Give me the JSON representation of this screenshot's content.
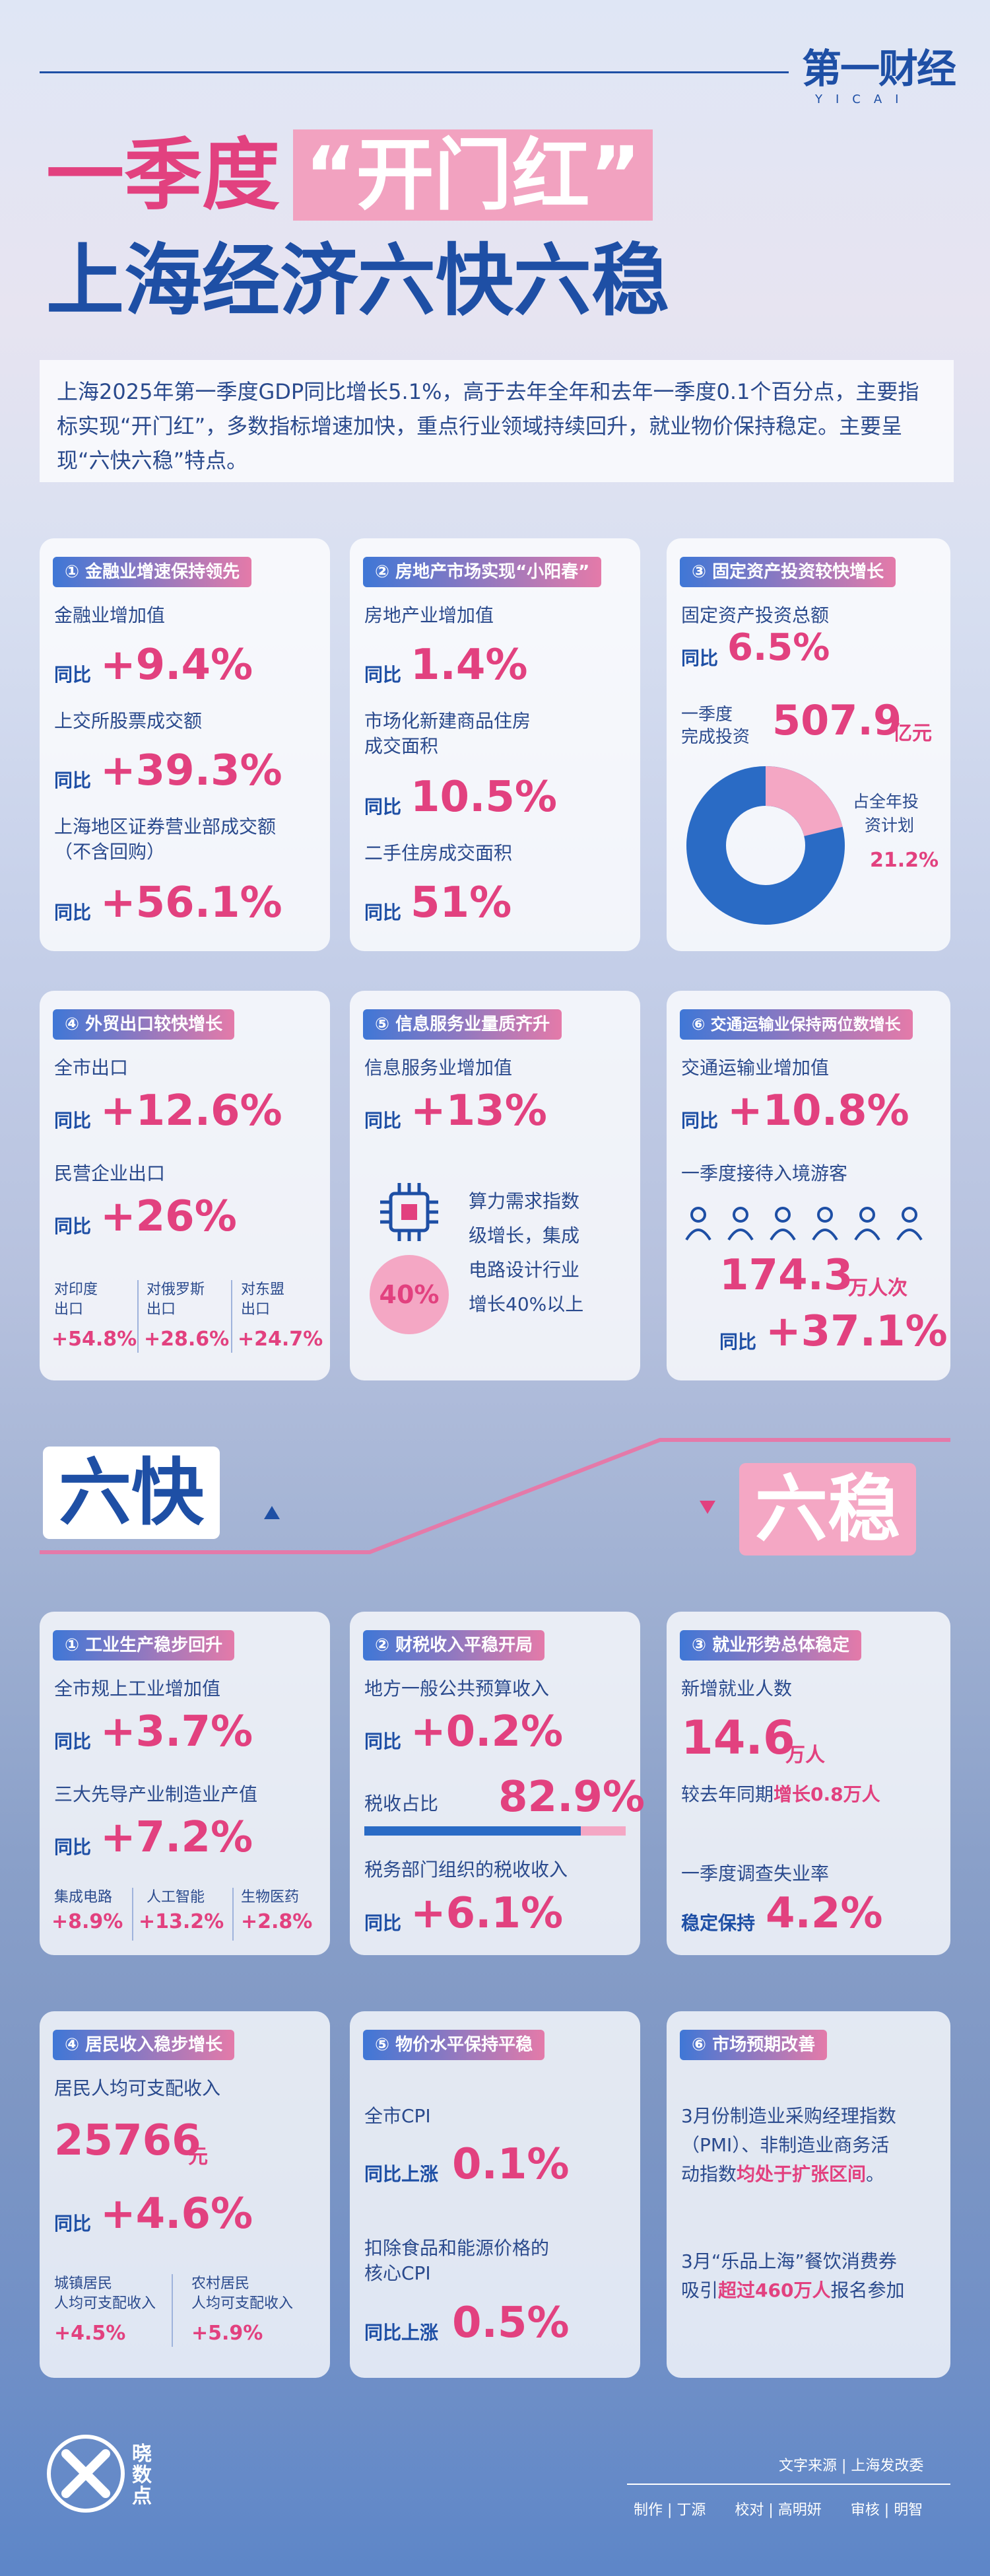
{
  "brand": {
    "logo": "第一财经",
    "logo_sub": "YICAI",
    "footer_logo": "晓数点"
  },
  "title": {
    "line1_a": "一季度",
    "line1_b": "“开门红”",
    "line2": "上海经济六快六稳"
  },
  "intro": "上海2025年第一季度GDP同比增长5.1%，高于去年全年和去年一季度0.1个百分点，主要指标实现“开门红”，多数指标增速加快，重点行业领域持续回升，就业物价保持稳定。主要呈现“六快六稳”特点。",
  "common": {
    "yoy": "同比",
    "yoy_up": "同比上涨"
  },
  "c1": {
    "tag": "① 金融业增速保持领先",
    "l1": "金融业增加值",
    "v1": "+9.4%",
    "l2": "上交所股票成交额",
    "v2": "+39.3%",
    "l3a": "上海地区证券营业部成交额",
    "l3b": "（不含回购）",
    "v3": "+56.1%"
  },
  "c2": {
    "tag": "② 房地产市场实现“小阳春”",
    "l1": "房地产业增加值",
    "v1": "1.4%",
    "l2a": "市场化新建商品住房",
    "l2b": "成交面积",
    "v2": "10.5%",
    "l3": "二手住房成交面积",
    "v3": "51%"
  },
  "c3": {
    "tag": "③ 固定资产投资较快增长",
    "l1": "固定资产投资总额",
    "v1": "6.5%",
    "l2a": "一季度",
    "l2b": "完成投资",
    "v2": "507.9",
    "v2u": "亿元",
    "donut_a": "占全年投",
    "donut_b": "资计划",
    "donut_v": "21.2%",
    "donut_frac": 0.212,
    "c_blue": "#2a6bc5",
    "c_pink": "#f4a7c4"
  },
  "c4": {
    "tag": "④ 外贸出口较快增长",
    "l1": "全市出口",
    "v1": "+12.6%",
    "l2": "民营企业出口",
    "v2": "+26%",
    "s": [
      {
        "a": "对印度",
        "b": "出口",
        "v": "+54.8%"
      },
      {
        "a": "对俄罗斯",
        "b": "出口",
        "v": "+28.6%"
      },
      {
        "a": "对东盟",
        "b": "出口",
        "v": "+24.7%"
      }
    ]
  },
  "c5": {
    "tag": "⑤ 信息服务业量质齐升",
    "l1": "信息服务业增加值",
    "v1": "+13%",
    "badge": "40%",
    "t1": "算力需求指数",
    "t2": "级增长，集成",
    "t3": "电路设计行业",
    "t4": "增长40%以上"
  },
  "c6": {
    "tag": "⑥ 交通运输业保持两位数增长",
    "l1": "交通运输业增加值",
    "v1": "+10.8%",
    "l2": "一季度接待入境游客",
    "v2": "174.3",
    "v2u": "万人次",
    "v3": "+37.1%"
  },
  "sec": {
    "fast": "六快",
    "stable": "六稳"
  },
  "d1": {
    "tag": "① 工业生产稳步回升",
    "l1": "全市规上工业增加值",
    "v1": "+3.7%",
    "l2": "三大先导产业制造业产值",
    "v2": "+7.2%",
    "s": [
      {
        "a": "集成电路",
        "v": "+8.9%"
      },
      {
        "a": "人工智能",
        "v": "+13.2%"
      },
      {
        "a": "生物医药",
        "v": "+2.8%"
      }
    ]
  },
  "d2": {
    "tag": "② 财税收入平稳开局",
    "l1": "地方一般公共预算收入",
    "v1": "+0.2%",
    "l2": "税收占比",
    "v2": "82.9%",
    "bar_frac": 0.829,
    "l3": "税务部门组织的税收收入",
    "v3": "+6.1%"
  },
  "d3": {
    "tag": "③ 就业形势总体稳定",
    "l1": "新增就业人数",
    "v1": "14.6",
    "v1u": "万人",
    "l2a": "较去年同期",
    "l2b": "增长0.8万人",
    "l3": "一季度调查失业率",
    "l4": "稳定保持",
    "v4": "4.2%"
  },
  "d4": {
    "tag": "④ 居民收入稳步增长",
    "l1": "居民人均可支配收入",
    "v1": "25766",
    "v1u": "元",
    "v2": "+4.6%",
    "s": [
      {
        "a": "城镇居民",
        "b": "人均可支配收入",
        "v": "+4.5%"
      },
      {
        "a": "农村居民",
        "b": "人均可支配收入",
        "v": "+5.9%"
      }
    ]
  },
  "d5": {
    "tag": "⑤ 物价水平保持平稳",
    "l1": "全市CPI",
    "v1": "0.1%",
    "l2a": "扣除食品和能源价格的",
    "l2b": "核心CPI",
    "v2": "0.5%"
  },
  "d6": {
    "tag": "⑥ 市场预期改善",
    "t1": "3月份制造业采购经理指数",
    "t2": "（PMI）、非制造业商务活",
    "t3a": "动指数",
    "t3b": "均处于扩张区间",
    "t3c": "。",
    "t4": "3月“乐品上海”餐饮消费券",
    "t5a": "吸引",
    "t5b": "超过460万人",
    "t5c": "报名参加"
  },
  "footer": {
    "source": "文字来源 | 上海发改委",
    "credits": "制作 | 丁源　　校对 | 高明妍　　审核 | 明智"
  }
}
